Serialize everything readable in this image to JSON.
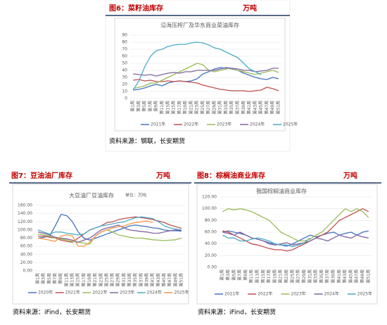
{
  "figures": [
    {
      "header": "图6：菜籽油库存",
      "unit": "万吨",
      "source": "资料来源：钢联，长安期货"
    },
    {
      "header": "图7：豆油油厂库存",
      "unit": "万吨",
      "source": "资料来源：iFind，长安期货"
    },
    {
      "header": "图8：棕榈油商业库存",
      "unit": "万吨",
      "source": "资料来源：iFind，长安期货"
    }
  ],
  "chart_data": [
    {
      "type": "line",
      "title": "沿海压榨厂及华东商业菜油库存",
      "categories": [
        "第1周",
        "第3周",
        "第5周",
        "第7周",
        "第9周",
        "第11周",
        "第13周",
        "第15周",
        "第17周",
        "第19周",
        "第21周",
        "第23周",
        "第25周",
        "第27周",
        "第29周",
        "第31周",
        "第33周",
        "第35周",
        "第37周",
        "第39周",
        "第41周",
        "第43周",
        "第45周",
        "第47周",
        "第49周",
        "第51周"
      ],
      "ylim": [
        0,
        90
      ],
      "yticks": [
        0,
        10,
        20,
        30,
        40,
        50,
        60,
        70,
        80,
        90
      ],
      "grid": true,
      "series": [
        {
          "name": "2021年",
          "color": "#4472c4",
          "values": [
            12,
            13,
            15,
            18,
            20,
            18,
            22,
            24,
            25,
            24,
            25,
            28,
            35,
            38,
            42,
            44,
            43,
            42,
            40,
            36,
            33,
            30,
            28,
            27,
            30,
            28
          ]
        },
        {
          "name": "2022年",
          "color": "#c0504d",
          "values": [
            26,
            27,
            25,
            26,
            24,
            24,
            25,
            24,
            25,
            24,
            23,
            22,
            19,
            17,
            15,
            13,
            12,
            11,
            11,
            11,
            10,
            11,
            12,
            16,
            14,
            11
          ]
        },
        {
          "name": "2023年",
          "color": "#9bbb59",
          "values": [
            14,
            16,
            18,
            22,
            22,
            26,
            30,
            34,
            38,
            42,
            46,
            50,
            48,
            40,
            38,
            40,
            42,
            43,
            40,
            38,
            36,
            34,
            36,
            38,
            40,
            37
          ]
        },
        {
          "name": "2024年",
          "color": "#8064a2",
          "values": [
            35,
            34,
            33,
            34,
            32,
            34,
            36,
            37,
            36,
            38,
            38,
            40,
            40,
            40,
            40,
            42,
            44,
            43,
            42,
            40,
            40,
            38,
            39,
            40,
            43,
            43
          ]
        },
        {
          "name": "2025年",
          "color": "#4bacc6",
          "values": [
            12,
            25,
            45,
            60,
            68,
            70,
            74,
            76,
            77,
            77,
            79,
            80,
            79,
            76,
            72,
            70,
            66,
            62,
            58,
            50,
            42,
            38,
            34,
            null,
            null,
            null
          ]
        }
      ]
    },
    {
      "type": "line",
      "title": "大豆油厂豆油库存",
      "subtitle": "单位：万吨",
      "categories": [
        "第1周",
        "第3周",
        "第5周",
        "第7周",
        "第9周",
        "第11周",
        "第13周",
        "第15周",
        "第17周",
        "第19周",
        "第21周",
        "第23周",
        "第25周",
        "第27周",
        "第29周",
        "第31周",
        "第33周",
        "第35周",
        "第37周",
        "第39周",
        "第41周",
        "第43周",
        "第45周",
        "第47周",
        "第49周",
        "第51周"
      ],
      "ylim": [
        0,
        160
      ],
      "yticks": [
        {
          "value": 0,
          "label": "0.00"
        },
        {
          "value": 20,
          "label": "20.00"
        },
        {
          "value": 40,
          "label": "40.00"
        },
        {
          "value": 60,
          "label": "60.00"
        },
        {
          "value": 80,
          "label": "80.00"
        },
        {
          "value": 100,
          "label": "100.00"
        },
        {
          "value": 120,
          "label": "120.00"
        },
        {
          "value": 140,
          "label": "140.00"
        },
        {
          "value": 160,
          "label": "160.00"
        }
      ],
      "grid": true,
      "series": [
        {
          "name": "2020年",
          "color": "#4472c4",
          "values": [
            80,
            82,
            85,
            110,
            138,
            135,
            120,
            95,
            80,
            75,
            80,
            85,
            90,
            95,
            100,
            105,
            110,
            112,
            110,
            108,
            105,
            104,
            100,
            98,
            98,
            97
          ]
        },
        {
          "name": "2021年",
          "color": "#c0504d",
          "values": [
            85,
            85,
            82,
            80,
            75,
            72,
            70,
            80,
            90,
            100,
            105,
            110,
            118,
            120,
            125,
            128,
            130,
            132,
            130,
            128,
            125,
            122,
            118,
            112,
            108,
            104
          ]
        },
        {
          "name": "2022年",
          "color": "#9bbb59",
          "values": [
            90,
            88,
            85,
            80,
            78,
            75,
            72,
            70,
            68,
            65,
            85,
            95,
            100,
            95,
            88,
            85,
            82,
            80,
            80,
            78,
            76,
            75,
            74,
            75,
            76,
            80
          ]
        },
        {
          "name": "2023年",
          "color": "#8064a2",
          "values": [
            95,
            92,
            88,
            82,
            80,
            78,
            75,
            70,
            75,
            80,
            90,
            100,
            105,
            108,
            112,
            105,
            100,
            98,
            96,
            95,
            92,
            92,
            95,
            98,
            100,
            98
          ]
        },
        {
          "name": "2024年",
          "color": "#4bacc6",
          "values": [
            100,
            95,
            90,
            95,
            95,
            92,
            90,
            88,
            90,
            100,
            105,
            110,
            112,
            115,
            118,
            120,
            125,
            130,
            132,
            130,
            128,
            120,
            110,
            105,
            102,
            100
          ]
        },
        {
          "name": "2025年",
          "color": "#f79646",
          "values": [
            80,
            78,
            75,
            72,
            85,
            88,
            85,
            60,
            60,
            70,
            85,
            95,
            100,
            105,
            108,
            110,
            115,
            118,
            120,
            122,
            118,
            null,
            null,
            null,
            null,
            null
          ]
        }
      ]
    },
    {
      "type": "line",
      "title": "我国棕榈油商业库存",
      "categories": [
        "第1周",
        "第3周",
        "第5周",
        "第7周",
        "第9周",
        "第11周",
        "第13周",
        "第15周",
        "第17周",
        "第19周",
        "第21周",
        "第23周",
        "第25周",
        "第27周",
        "第29周",
        "第31周",
        "第33周",
        "第35周",
        "第37周",
        "第39周",
        "第41周",
        "第43周",
        "第45周",
        "第47周",
        "第49周",
        "第51周"
      ],
      "ylim": [
        0,
        120
      ],
      "yticks": [
        {
          "value": 0,
          "label": "0.00"
        },
        {
          "value": 20,
          "label": "20.00"
        },
        {
          "value": 40,
          "label": "40.00"
        },
        {
          "value": 60,
          "label": "60.00"
        },
        {
          "value": 80,
          "label": "80.00"
        },
        {
          "value": 100,
          "label": "100.00"
        },
        {
          "value": 120,
          "label": "120.00"
        }
      ],
      "grid": true,
      "series": [
        {
          "name": "2021年",
          "color": "#4472c4",
          "values": [
            60,
            62,
            60,
            58,
            55,
            50,
            48,
            45,
            42,
            40,
            38,
            36,
            40,
            45,
            50,
            55,
            52,
            55,
            58,
            60,
            55,
            58,
            60,
            55,
            60,
            62
          ]
        },
        {
          "name": "2022年",
          "color": "#c0504d",
          "values": [
            62,
            60,
            55,
            50,
            45,
            40,
            38,
            35,
            32,
            30,
            30,
            28,
            30,
            35,
            40,
            45,
            50,
            55,
            60,
            70,
            80,
            85,
            90,
            95,
            100,
            95
          ]
        },
        {
          "name": "2023年",
          "color": "#9bbb59",
          "values": [
            95,
            100,
            98,
            100,
            98,
            95,
            90,
            85,
            80,
            70,
            60,
            55,
            50,
            45,
            45,
            48,
            55,
            60,
            70,
            80,
            90,
            100,
            95,
            100,
            95,
            85
          ]
        },
        {
          "name": "2024年",
          "color": "#8064a2",
          "values": [
            60,
            58,
            55,
            60,
            55,
            50,
            48,
            45,
            40,
            38,
            40,
            42,
            38,
            40,
            42,
            45,
            50,
            48,
            45,
            50,
            55,
            52,
            50,
            55,
            52,
            50
          ]
        },
        {
          "name": "2025年",
          "color": "#4bacc6",
          "values": [
            55,
            50,
            50,
            45,
            45,
            48,
            50,
            48,
            45,
            40,
            38,
            38,
            35,
            38,
            42,
            50,
            null,
            null,
            null,
            null,
            null,
            null,
            null,
            null,
            null,
            null
          ]
        }
      ]
    }
  ]
}
